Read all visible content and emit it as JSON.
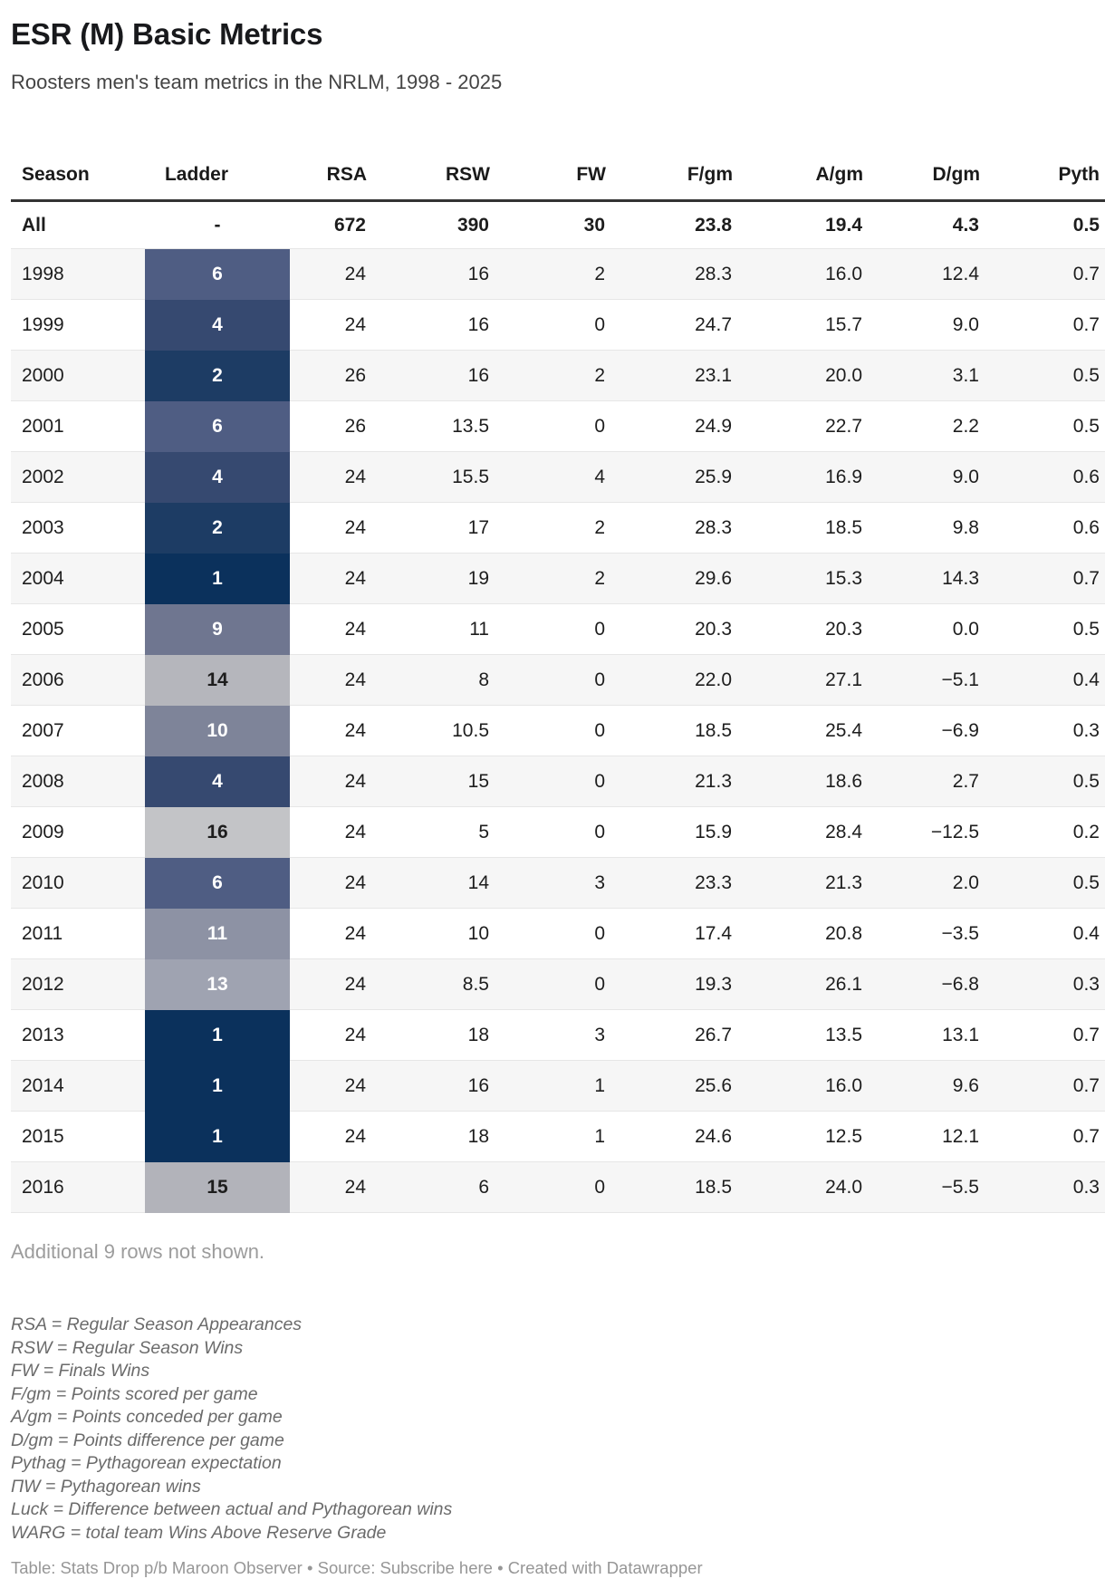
{
  "title": "ESR (M) Basic Metrics",
  "subtitle": "Roosters men's team metrics in the NRLM, 1998 - 2025",
  "chart_data": {
    "type": "table",
    "title": "ESR (M) Basic Metrics",
    "columns": [
      "Season",
      "Ladder",
      "RSA",
      "RSW",
      "FW",
      "F/gm",
      "A/gm",
      "D/gm",
      "Pyth"
    ],
    "summary_row": {
      "season": "All",
      "ladder": "-",
      "rsa": "672",
      "rsw": "390",
      "fw": "30",
      "fgm": "23.8",
      "agm": "19.4",
      "dgm": "4.3",
      "pyth": "0.5"
    },
    "rows": [
      {
        "season": "1998",
        "ladder": "6",
        "rsa": "24",
        "rsw": "16",
        "fw": "2",
        "fgm": "28.3",
        "agm": "16.0",
        "dgm": "12.4",
        "pyth": "0.7"
      },
      {
        "season": "1999",
        "ladder": "4",
        "rsa": "24",
        "rsw": "16",
        "fw": "0",
        "fgm": "24.7",
        "agm": "15.7",
        "dgm": "9.0",
        "pyth": "0.7"
      },
      {
        "season": "2000",
        "ladder": "2",
        "rsa": "26",
        "rsw": "16",
        "fw": "2",
        "fgm": "23.1",
        "agm": "20.0",
        "dgm": "3.1",
        "pyth": "0.5"
      },
      {
        "season": "2001",
        "ladder": "6",
        "rsa": "26",
        "rsw": "13.5",
        "fw": "0",
        "fgm": "24.9",
        "agm": "22.7",
        "dgm": "2.2",
        "pyth": "0.5"
      },
      {
        "season": "2002",
        "ladder": "4",
        "rsa": "24",
        "rsw": "15.5",
        "fw": "4",
        "fgm": "25.9",
        "agm": "16.9",
        "dgm": "9.0",
        "pyth": "0.6"
      },
      {
        "season": "2003",
        "ladder": "2",
        "rsa": "24",
        "rsw": "17",
        "fw": "2",
        "fgm": "28.3",
        "agm": "18.5",
        "dgm": "9.8",
        "pyth": "0.6"
      },
      {
        "season": "2004",
        "ladder": "1",
        "rsa": "24",
        "rsw": "19",
        "fw": "2",
        "fgm": "29.6",
        "agm": "15.3",
        "dgm": "14.3",
        "pyth": "0.7"
      },
      {
        "season": "2005",
        "ladder": "9",
        "rsa": "24",
        "rsw": "11",
        "fw": "0",
        "fgm": "20.3",
        "agm": "20.3",
        "dgm": "0.0",
        "pyth": "0.5"
      },
      {
        "season": "2006",
        "ladder": "14",
        "rsa": "24",
        "rsw": "8",
        "fw": "0",
        "fgm": "22.0",
        "agm": "27.1",
        "dgm": "−5.1",
        "pyth": "0.4"
      },
      {
        "season": "2007",
        "ladder": "10",
        "rsa": "24",
        "rsw": "10.5",
        "fw": "0",
        "fgm": "18.5",
        "agm": "25.4",
        "dgm": "−6.9",
        "pyth": "0.3"
      },
      {
        "season": "2008",
        "ladder": "4",
        "rsa": "24",
        "rsw": "15",
        "fw": "0",
        "fgm": "21.3",
        "agm": "18.6",
        "dgm": "2.7",
        "pyth": "0.5"
      },
      {
        "season": "2009",
        "ladder": "16",
        "rsa": "24",
        "rsw": "5",
        "fw": "0",
        "fgm": "15.9",
        "agm": "28.4",
        "dgm": "−12.5",
        "pyth": "0.2"
      },
      {
        "season": "2010",
        "ladder": "6",
        "rsa": "24",
        "rsw": "14",
        "fw": "3",
        "fgm": "23.3",
        "agm": "21.3",
        "dgm": "2.0",
        "pyth": "0.5"
      },
      {
        "season": "2011",
        "ladder": "11",
        "rsa": "24",
        "rsw": "10",
        "fw": "0",
        "fgm": "17.4",
        "agm": "20.8",
        "dgm": "−3.5",
        "pyth": "0.4"
      },
      {
        "season": "2012",
        "ladder": "13",
        "rsa": "24",
        "rsw": "8.5",
        "fw": "0",
        "fgm": "19.3",
        "agm": "26.1",
        "dgm": "−6.8",
        "pyth": "0.3"
      },
      {
        "season": "2013",
        "ladder": "1",
        "rsa": "24",
        "rsw": "18",
        "fw": "3",
        "fgm": "26.7",
        "agm": "13.5",
        "dgm": "13.1",
        "pyth": "0.7"
      },
      {
        "season": "2014",
        "ladder": "1",
        "rsa": "24",
        "rsw": "16",
        "fw": "1",
        "fgm": "25.6",
        "agm": "16.0",
        "dgm": "9.6",
        "pyth": "0.7"
      },
      {
        "season": "2015",
        "ladder": "1",
        "rsa": "24",
        "rsw": "18",
        "fw": "1",
        "fgm": "24.6",
        "agm": "12.5",
        "dgm": "12.1",
        "pyth": "0.7"
      },
      {
        "season": "2016",
        "ladder": "15",
        "rsa": "24",
        "rsw": "6",
        "fw": "0",
        "fgm": "18.5",
        "agm": "24.0",
        "dgm": "−5.5",
        "pyth": "0.3"
      }
    ]
  },
  "ladder_styles": {
    "bg": {
      "1": "#0b315c",
      "2": "#1d3c64",
      "4": "#364970",
      "6": "#4f5d83",
      "9": "#6f7690",
      "10": "#7e8499",
      "11": "#8d92a4",
      "13": "#9fa3b1",
      "14": "#b5b6bc",
      "15": "#b2b3ba",
      "16": "#c3c4c7"
    },
    "dark_text_values": [
      "14",
      "15",
      "16"
    ],
    "light_text_color": "#ffffff",
    "dark_text_color": "#1d1d1d"
  },
  "colors": {
    "header_rule": "#333333",
    "row_divider": "#e6e6e6",
    "stripe": "#f6f6f6",
    "muted_text": "#9c9c9c",
    "footnote_text": "#6b6b6b"
  },
  "rows_note": "Additional 9 rows not shown.",
  "footnotes": [
    "RSA = Regular Season Appearances",
    "RSW = Regular Season Wins",
    "FW = Finals Wins",
    "F/gm = Points scored per game",
    "A/gm = Points conceded per game",
    "D/gm = Points difference per game",
    "Pythag = Pythagorean expectation",
    "ΠW = Pythagorean wins",
    "Luck = Difference between actual and Pythagorean wins",
    "WARG = total team Wins Above Reserve Grade"
  ],
  "footer": {
    "prefix": "Table: Stats Drop p/b Maroon Observer • Source: ",
    "link_label": "Subscribe here",
    "suffix": " • Created with Datawrapper"
  }
}
